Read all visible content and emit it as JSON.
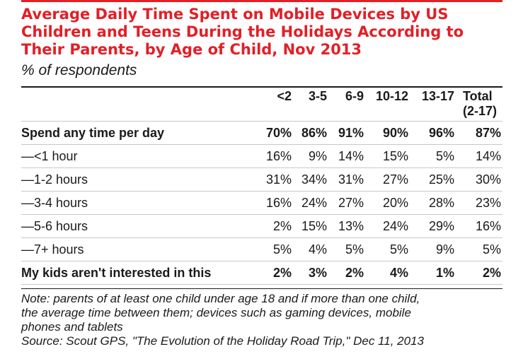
{
  "chart_data": {
    "type": "table",
    "title": "Average Daily Time Spent on Mobile Devices by US Children and Teens During the Holidays According to Their Parents, by Age of Child, Nov 2013",
    "title_lines": [
      "Average Daily Time Spent on Mobile Devices by US",
      "Children and Teens During the Holidays According to",
      "Their Parents, by Age of Child, Nov 2013"
    ],
    "subtitle": "% of respondents",
    "columns": [
      "<2",
      "3-5",
      "6-9",
      "10-12",
      "13-17",
      "Total"
    ],
    "column_sublabels": [
      "",
      "",
      "",
      "",
      "",
      "(2-17)"
    ],
    "rows": [
      {
        "label": "Spend any time per day",
        "bold": true,
        "values": [
          "70%",
          "86%",
          "91%",
          "90%",
          "96%",
          "87%"
        ]
      },
      {
        "label": "—<1 hour",
        "bold": false,
        "values": [
          "16%",
          "9%",
          "14%",
          "15%",
          "5%",
          "14%"
        ]
      },
      {
        "label": "—1-2 hours",
        "bold": false,
        "values": [
          "31%",
          "34%",
          "31%",
          "27%",
          "25%",
          "30%"
        ]
      },
      {
        "label": "—3-4 hours",
        "bold": false,
        "values": [
          "16%",
          "24%",
          "27%",
          "20%",
          "28%",
          "23%"
        ]
      },
      {
        "label": "—5-6 hours",
        "bold": false,
        "values": [
          "2%",
          "15%",
          "13%",
          "24%",
          "29%",
          "16%"
        ]
      },
      {
        "label": "—7+ hours",
        "bold": false,
        "values": [
          "5%",
          "4%",
          "5%",
          "5%",
          "9%",
          "5%"
        ]
      },
      {
        "label": "My kids aren't interested in this",
        "bold": true,
        "values": [
          "2%",
          "3%",
          "2%",
          "4%",
          "1%",
          "2%"
        ]
      }
    ],
    "note_lines": [
      "Note: parents of at least one child under age 18 and if more than one child,",
      "the average time between them; devices such as gaming devices, mobile",
      "phones and tablets"
    ],
    "source": "Source: Scout GPS, \"The Evolution of the Holiday Road Trip,\" Dec 11, 2013"
  },
  "colors": {
    "title": "#e21f26",
    "accent_bar": "#e21f26",
    "text": "#1a1a1a",
    "row_rule": "#c8c8c8"
  }
}
